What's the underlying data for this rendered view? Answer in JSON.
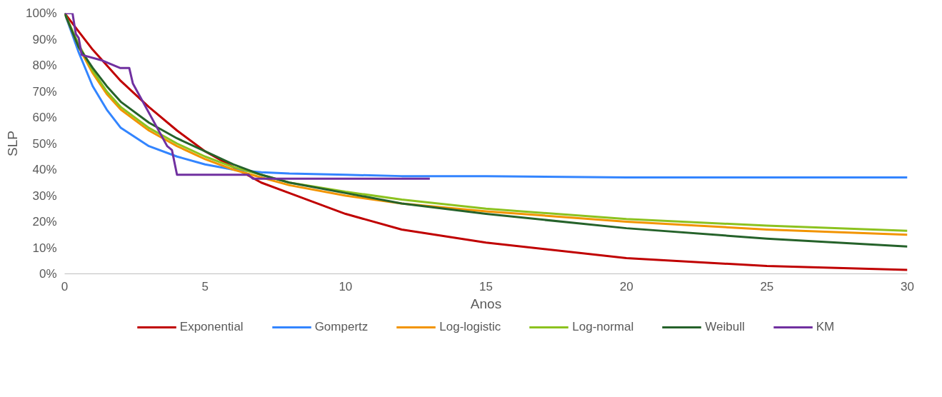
{
  "chart_data": {
    "type": "line",
    "xlabel": "Anos",
    "ylabel": "SLP",
    "xlim": [
      0,
      30
    ],
    "xticks": [
      0,
      5,
      10,
      15,
      20,
      25,
      30
    ],
    "ylim": [
      0,
      100
    ],
    "yticks": [
      {
        "value": 0,
        "label": "0%"
      },
      {
        "value": 10,
        "label": "10%"
      },
      {
        "value": 20,
        "label": "20%"
      },
      {
        "value": 30,
        "label": "30%"
      },
      {
        "value": 40,
        "label": "40%"
      },
      {
        "value": 50,
        "label": "50%"
      },
      {
        "value": 60,
        "label": "60%"
      },
      {
        "value": 70,
        "label": "70%"
      },
      {
        "value": 80,
        "label": "80%"
      },
      {
        "value": 90,
        "label": "90%"
      },
      {
        "value": 100,
        "label": "100%"
      }
    ],
    "grid": false,
    "legend": "bottom",
    "marker": "none",
    "line_style": "solid",
    "x": [
      0,
      0.5,
      1,
      1.5,
      2,
      3,
      4,
      5,
      6,
      7,
      8,
      10,
      12,
      15,
      20,
      25,
      30
    ],
    "series": [
      {
        "name": "Exponential",
        "color": "#c00000",
        "values": [
          100,
          93,
          86,
          80,
          74,
          64,
          55,
          47,
          41,
          35,
          31,
          23,
          17,
          12,
          6,
          3,
          1.5
        ]
      },
      {
        "name": "Gompertz",
        "color": "#3385ff",
        "values": [
          100,
          85,
          72,
          63,
          56,
          49,
          45,
          42,
          40,
          39,
          38.5,
          38,
          37.5,
          37.5,
          37,
          37,
          37
        ]
      },
      {
        "name": "Log-logistic",
        "color": "#f29400",
        "values": [
          100,
          87,
          77,
          69,
          63,
          55,
          49,
          44,
          40,
          37,
          34,
          30,
          27,
          24,
          20,
          17,
          15
        ]
      },
      {
        "name": "Log-normal",
        "color": "#8cc21f",
        "values": [
          100,
          88,
          78,
          70,
          64,
          56,
          50,
          45,
          41,
          38,
          35,
          31.5,
          28.5,
          25,
          21,
          18.5,
          16.5
        ]
      },
      {
        "name": "Weibull",
        "color": "#25622a",
        "values": [
          100,
          87,
          79,
          72,
          66,
          58,
          52,
          47,
          42,
          38,
          35,
          31,
          27,
          23,
          17.5,
          13.5,
          10.5
        ]
      },
      {
        "name": "KM",
        "color": "#7030a0",
        "x": [
          0,
          0.28,
          0.4,
          0.5,
          0.61,
          1.3,
          1.97,
          2.3,
          2.43,
          3.65,
          3.82,
          4.0,
          6.55,
          6.7,
          13
        ],
        "values": [
          100,
          100,
          92,
          90.5,
          84,
          82,
          79,
          79,
          73,
          49,
          47.5,
          38,
          38,
          36.5,
          36.5
        ]
      }
    ]
  }
}
